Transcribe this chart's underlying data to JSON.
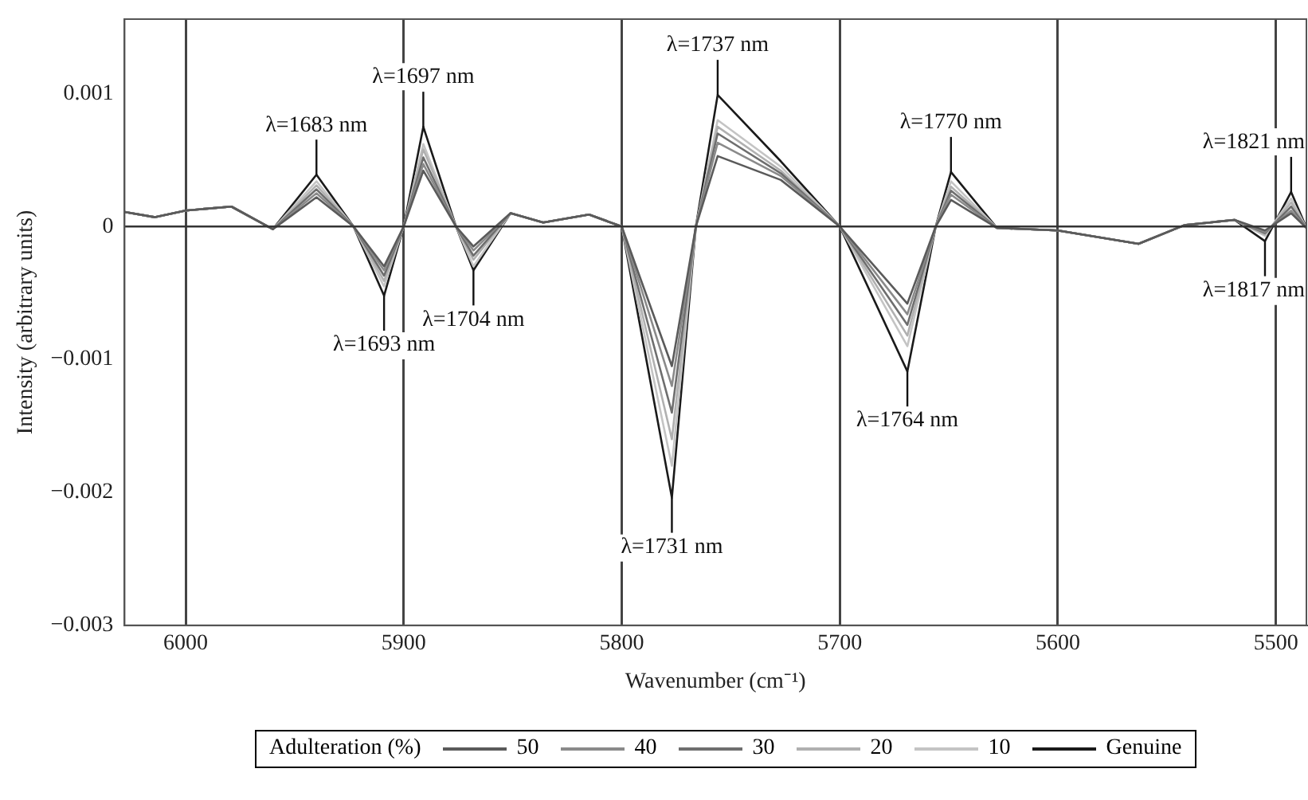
{
  "chart_data": {
    "type": "line",
    "xlabel": "Wavenumber (cm⁻¹)",
    "ylabel": "Intensity (arbitrary units)",
    "legend_title": "Adulteration (%)",
    "legend": "bottom",
    "grid": "x",
    "marker": "none",
    "line_style": "solid",
    "x": [
      6028,
      6014,
      6000,
      5979,
      5960,
      5940,
      5923,
      5909,
      5900,
      5891,
      5876,
      5868,
      5851,
      5836,
      5815,
      5800,
      5777,
      5766,
      5756,
      5727,
      5700,
      5669,
      5656,
      5649,
      5628,
      5600,
      5563,
      5542,
      5519,
      5505,
      5493,
      5486
    ],
    "xlim": [
      6028,
      5486
    ],
    "xticks": [
      6000,
      5900,
      5800,
      5700,
      5600,
      5500
    ],
    "ylim": [
      -0.003,
      0.00156
    ],
    "yticks": [
      {
        "value": -0.003,
        "label": "−0.003"
      },
      {
        "value": -0.002,
        "label": "−0.002"
      },
      {
        "value": -0.001,
        "label": "−0.001"
      },
      0,
      0.001
    ],
    "ref_lines": [
      {
        "axis": "y",
        "value": 0,
        "color": "#333333"
      }
    ],
    "series": [
      {
        "name": "50",
        "color": "#5a5a5a",
        "values": [
          0.00011,
          7e-05,
          0.00012,
          0.00015,
          -2e-05,
          0.00022,
          0,
          -0.0003,
          0,
          0.00042,
          0,
          -0.00015,
          0.0001,
          3e-05,
          9e-05,
          0,
          -0.00105,
          0,
          0.00053,
          0.00035,
          0,
          -0.00058,
          0,
          0.0002,
          -1e-05,
          -3e-05,
          -0.00013,
          1e-05,
          5e-05,
          -3e-05,
          0.0001,
          -1e-05
        ]
      },
      {
        "name": "40",
        "color": "#8a8a8a",
        "values": [
          0.00011,
          7e-05,
          0.00012,
          0.00015,
          -2e-05,
          0.00025,
          0,
          -0.00033,
          0,
          0.00047,
          0,
          -0.00018,
          0.0001,
          3e-05,
          9e-05,
          0,
          -0.0012,
          0,
          0.00063,
          0.00038,
          0,
          -0.00066,
          0,
          0.00024,
          -1e-05,
          -3e-05,
          -0.00013,
          1e-05,
          5e-05,
          -4e-05,
          0.00012,
          -1e-05
        ]
      },
      {
        "name": "30",
        "color": "#6e6e6e",
        "values": [
          0.00011,
          7e-05,
          0.00012,
          0.00015,
          -2e-05,
          0.00028,
          0,
          -0.00037,
          0,
          0.00052,
          0,
          -0.00022,
          0.0001,
          3e-05,
          9e-05,
          0,
          -0.0014,
          0,
          0.0007,
          0.0004,
          0,
          -0.00074,
          0,
          0.00027,
          -1e-05,
          -3e-05,
          -0.00013,
          1e-05,
          5e-05,
          -5e-05,
          0.00015,
          -1e-05
        ]
      },
      {
        "name": "20",
        "color": "#b0b0b0",
        "values": [
          0.00011,
          7e-05,
          0.00012,
          0.00015,
          -2e-05,
          0.00031,
          0,
          -0.00041,
          0,
          0.00058,
          0,
          -0.00025,
          0.0001,
          3e-05,
          9e-05,
          0,
          -0.0016,
          0,
          0.00075,
          0.00042,
          0,
          -0.00082,
          0,
          0.0003,
          -1e-05,
          -3e-05,
          -0.00013,
          1e-05,
          5e-05,
          -6e-05,
          0.00018,
          -1e-05
        ]
      },
      {
        "name": "10",
        "color": "#c4c4c4",
        "values": [
          0.00011,
          7e-05,
          0.00012,
          0.00015,
          -2e-05,
          0.00034,
          0,
          -0.00045,
          0,
          0.00062,
          0,
          -0.0003,
          0.0001,
          3e-05,
          9e-05,
          0,
          -0.0018,
          0,
          0.0008,
          0.00045,
          0,
          -0.0009,
          0,
          0.00034,
          -1e-05,
          -3e-05,
          -0.00013,
          1e-05,
          5e-05,
          -7e-05,
          0.00021,
          -1e-05
        ]
      },
      {
        "name": "Genuine",
        "color": "#1a1a1a",
        "values": [
          0.00011,
          7e-05,
          0.00012,
          0.00015,
          -2e-05,
          0.00039,
          0,
          -0.00052,
          0,
          0.00075,
          0,
          -0.00033,
          0.0001,
          3e-05,
          9e-05,
          0,
          -0.00204,
          0,
          0.00099,
          0.00049,
          0,
          -0.00109,
          0,
          0.00041,
          -1e-05,
          -3e-05,
          -0.00013,
          1e-05,
          5e-05,
          -0.00011,
          0.00026,
          -1e-05
        ]
      }
    ],
    "annotations": [
      {
        "text": "λ=1683 nm",
        "x": 5940,
        "y": 0.00039
      },
      {
        "text": "λ=1693 nm",
        "x": 5909,
        "y": -0.00052
      },
      {
        "text": "λ=1697 nm",
        "x": 5891,
        "y": 0.00075
      },
      {
        "text": "λ=1704 nm",
        "x": 5868,
        "y": -0.00033
      },
      {
        "text": "λ=1731 nm",
        "x": 5777,
        "y": -0.00204
      },
      {
        "text": "λ=1737 nm",
        "x": 5756,
        "y": 0.00099
      },
      {
        "text": "λ=1764 nm",
        "x": 5669,
        "y": -0.00109
      },
      {
        "text": "λ=1770 nm",
        "x": 5649,
        "y": 0.00041
      },
      {
        "text": "λ=1817 nm",
        "x": 5505,
        "y": -0.00011
      },
      {
        "text": "λ=1821 nm",
        "x": 5493,
        "y": 0.00026
      }
    ]
  }
}
